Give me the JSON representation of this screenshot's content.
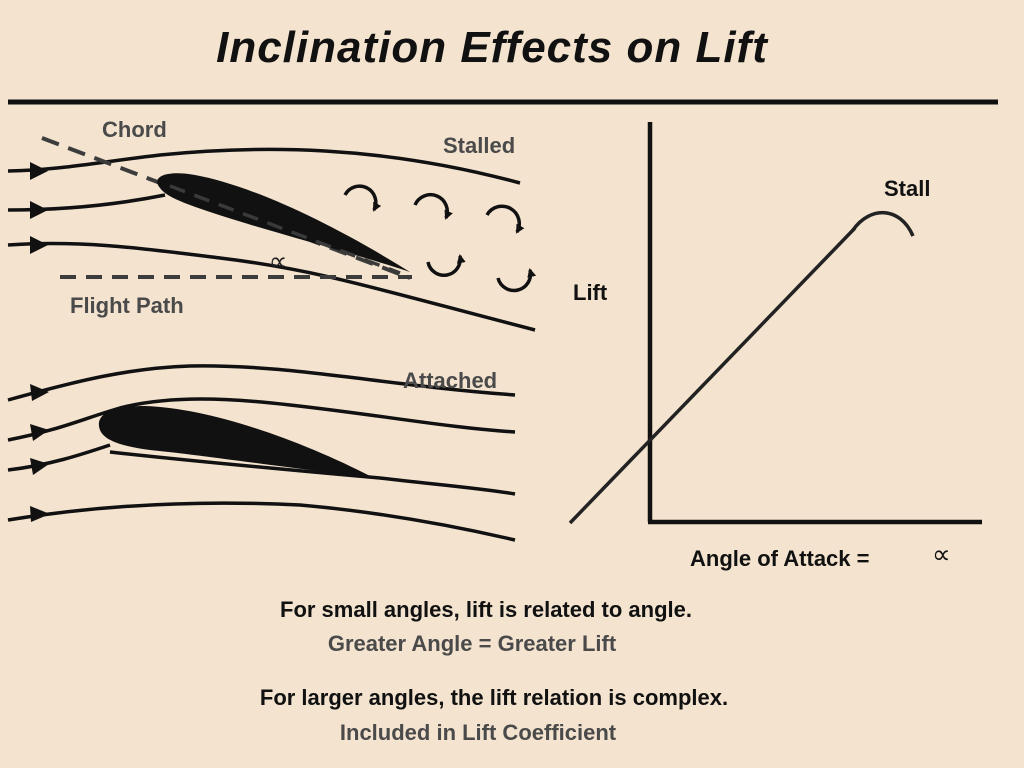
{
  "title": "Inclination Effects on Lift",
  "stalled_panel": {
    "chord_label": "Chord",
    "state_label": "Stalled",
    "flight_path_label": "Flight Path",
    "angle_symbol": "∝"
  },
  "attached_panel": {
    "state_label": "Attached"
  },
  "graph": {
    "y_label": "Lift",
    "x_label": "Angle  of  Attack =",
    "alpha_symbol": "∝",
    "stall_label": "Stall"
  },
  "notes": {
    "line1": "For small angles, lift is related to angle.",
    "line2": "Greater Angle = Greater Lift",
    "line3": "For larger angles, the lift relation is complex.",
    "line4": "Included in Lift Coefficient"
  },
  "colors": {
    "background": "#f3e3cf",
    "ink": "#111111",
    "gray_text": "#4a4a4a",
    "dashed": "#3c3c3c"
  }
}
